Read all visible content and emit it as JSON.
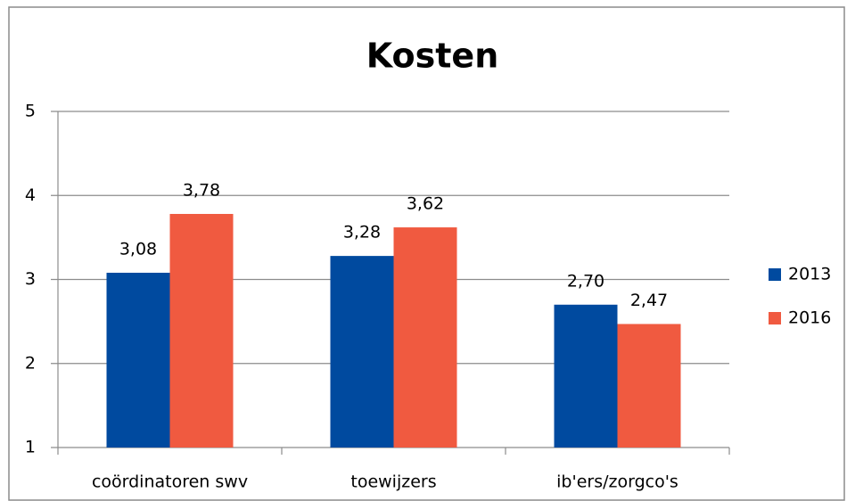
{
  "chart_data": {
    "type": "bar",
    "title": "Kosten",
    "categories": [
      "coördinatoren swv",
      "toewijzers",
      "ib'ers/zorgco's"
    ],
    "series": [
      {
        "name": "2013",
        "color": "#004a9f",
        "values": [
          3.08,
          3.28,
          2.7
        ],
        "value_labels": [
          "3,08",
          "3,28",
          "2,70"
        ]
      },
      {
        "name": "2016",
        "color": "#f05a40",
        "values": [
          3.78,
          3.62,
          2.47
        ],
        "value_labels": [
          "3,78",
          "3,62",
          "2,47"
        ]
      }
    ],
    "ylim": [
      1,
      5
    ],
    "yticks": [
      1,
      2,
      3,
      4,
      5
    ],
    "grid": true,
    "legend": "right"
  }
}
